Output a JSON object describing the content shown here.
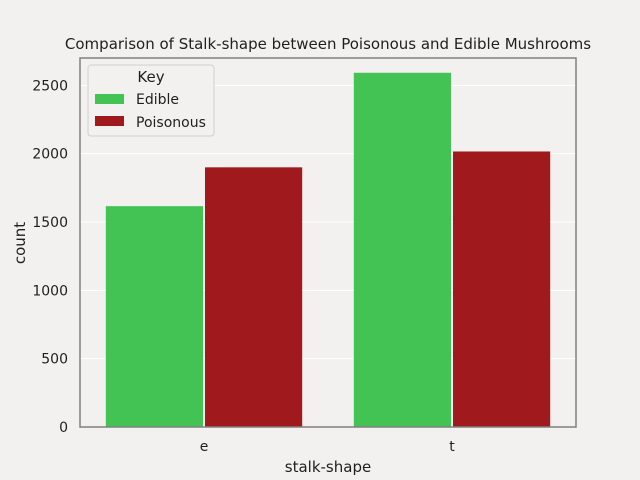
{
  "chart_data": {
    "type": "bar",
    "title": "Comparison of Stalk-shape between Poisonous and Edible Mushrooms",
    "xlabel": "stalk-shape",
    "ylabel": "count",
    "categories": [
      "e",
      "t"
    ],
    "series": [
      {
        "name": "Edible",
        "values": [
          1616,
          2592
        ],
        "color": "#44c355"
      },
      {
        "name": "Poisonous",
        "values": [
          1900,
          2016
        ],
        "color": "#a0191c"
      }
    ],
    "ylim": [
      0,
      2700
    ],
    "yticks": [
      0,
      500,
      1000,
      1500,
      2000,
      2500
    ],
    "grid": true,
    "legend": {
      "title": "Key",
      "placement": "top-left"
    }
  },
  "colors": {
    "background": "#f3f1ef",
    "grid": "#ffffff",
    "axes_frame": "#808080"
  }
}
